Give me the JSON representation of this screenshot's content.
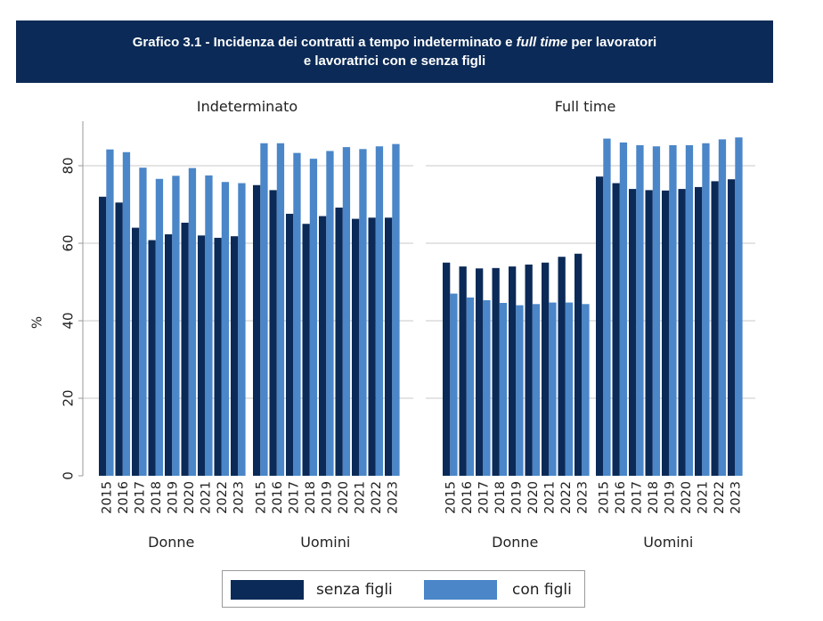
{
  "header": {
    "title_part1": "Grafico 3.1 - Incidenza dei contratti a tempo indeterminato e ",
    "title_italic": "full time",
    "title_part2": " per lavoratori",
    "title_line2": "e lavoratrici con e senza figli"
  },
  "colors": {
    "senza_figli": "#0b2a57",
    "con_figli": "#4a86c8",
    "grid": "#c8c8c8"
  },
  "legend": {
    "senza_figli": "senza figli",
    "con_figli": "con figli"
  },
  "chart_data": [
    {
      "type": "bar",
      "title": "Indeterminato",
      "ylabel": "%",
      "ylim": [
        0,
        90
      ],
      "yticks": [
        0,
        20,
        40,
        60,
        80
      ],
      "groups": [
        {
          "name": "Donne",
          "categories": [
            "2015",
            "2016",
            "2017",
            "2018",
            "2019",
            "2020",
            "2021",
            "2022",
            "2023"
          ],
          "series": [
            {
              "name": "senza figli",
              "values": [
                72.0,
                70.5,
                64.0,
                60.8,
                62.3,
                65.3,
                62.0,
                61.4,
                61.8
              ]
            },
            {
              "name": "con figli",
              "values": [
                84.2,
                83.5,
                79.5,
                76.6,
                77.4,
                79.4,
                77.5,
                75.8,
                75.5
              ]
            }
          ]
        },
        {
          "name": "Uomini",
          "categories": [
            "2015",
            "2016",
            "2017",
            "2018",
            "2019",
            "2020",
            "2021",
            "2022",
            "2023"
          ],
          "series": [
            {
              "name": "senza figli",
              "values": [
                75.0,
                73.7,
                67.6,
                65.0,
                67.0,
                69.2,
                66.3,
                66.6,
                66.6
              ]
            },
            {
              "name": "con figli",
              "values": [
                85.8,
                85.8,
                83.3,
                81.8,
                83.8,
                84.8,
                84.3,
                85.0,
                85.6
              ]
            }
          ]
        }
      ]
    },
    {
      "type": "bar",
      "title": "Full time",
      "ylabel": "%",
      "ylim": [
        0,
        90
      ],
      "yticks": [
        0,
        20,
        40,
        60,
        80
      ],
      "groups": [
        {
          "name": "Donne",
          "categories": [
            "2015",
            "2016",
            "2017",
            "2018",
            "2019",
            "2020",
            "2021",
            "2022",
            "2023"
          ],
          "series": [
            {
              "name": "senza figli",
              "values": [
                55.0,
                54.0,
                53.5,
                53.6,
                54.0,
                54.5,
                55.0,
                56.5,
                57.3
              ]
            },
            {
              "name": "con figli",
              "values": [
                47.0,
                46.0,
                45.3,
                44.6,
                44.0,
                44.3,
                44.7,
                44.7,
                44.3
              ]
            }
          ]
        },
        {
          "name": "Uomini",
          "categories": [
            "2015",
            "2016",
            "2017",
            "2018",
            "2019",
            "2020",
            "2021",
            "2022",
            "2023"
          ],
          "series": [
            {
              "name": "senza figli",
              "values": [
                77.2,
                75.5,
                74.0,
                73.7,
                73.6,
                74.0,
                74.5,
                76.0,
                76.5
              ]
            },
            {
              "name": "con figli",
              "values": [
                87.0,
                86.0,
                85.3,
                85.0,
                85.3,
                85.3,
                85.8,
                86.8,
                87.3
              ]
            }
          ]
        }
      ]
    }
  ]
}
